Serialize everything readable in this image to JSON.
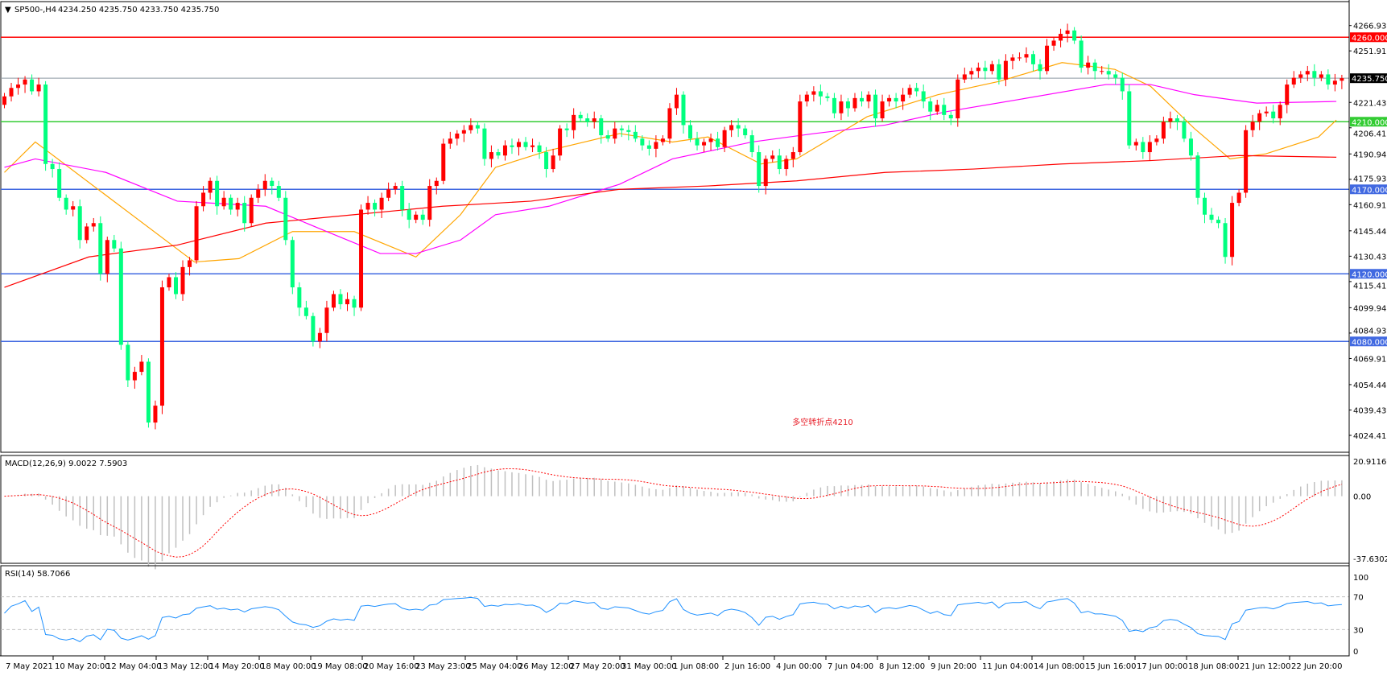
{
  "header": {
    "symbol": "SP500-,H4",
    "ohlc": "4234.250 4235.750 4233.750 4235.750"
  },
  "annotation": {
    "text": "多空转折点4210",
    "color": "#e8202a"
  },
  "colors": {
    "up": "#ff0000",
    "down": "#00ff7f",
    "ma_fast": "#ffa500",
    "ma_mid": "#ff00ff",
    "ma_slow": "#ff0000",
    "macd_hist": "#c0c0c0",
    "macd_signal": "#ff0000",
    "rsi": "#1e90ff"
  },
  "chart_data": {
    "type": "candlestick",
    "title": "SP500-,H4",
    "price_axis_ticks": [
      "4266.930",
      "4251.915",
      "4221.430",
      "4206.415",
      "4190.945",
      "4175.930",
      "4160.915",
      "4145.445",
      "4130.430",
      "4115.415",
      "4099.945",
      "4084.930",
      "4069.915",
      "4054.445",
      "4039.430",
      "4024.415"
    ],
    "ylim": [
      4024.415,
      4266.93
    ],
    "current_price": {
      "value": 4235.75,
      "label": "4235.750"
    },
    "levels": [
      {
        "value": 4260,
        "label": "4260.000",
        "color": "#ff0000"
      },
      {
        "value": 4210,
        "label": "4210.000",
        "color": "#33cc33"
      },
      {
        "value": 4170,
        "label": "4170.000",
        "color": "#4169e1"
      },
      {
        "value": 4120,
        "label": "4120.000",
        "color": "#4169e1"
      },
      {
        "value": 4080,
        "label": "4080.000",
        "color": "#4169e1"
      }
    ],
    "first_open": 4220,
    "closes": [
      4225,
      4230,
      4232,
      4235,
      4228,
      4232,
      4185,
      4182,
      4165,
      4158,
      4160,
      4140,
      4148,
      4150,
      4120,
      4140,
      4135,
      4078,
      4057,
      4062,
      4068,
      4032,
      4042,
      4112,
      4118,
      4108,
      4124,
      4128,
      4160,
      4168,
      4175,
      4160,
      4165,
      4158,
      4162,
      4150,
      4165,
      4170,
      4175,
      4172,
      4165,
      4140,
      4112,
      4100,
      4095,
      4080,
      4085,
      4100,
      4108,
      4102,
      4105,
      4100,
      4158,
      4162,
      4158,
      4165,
      4170,
      4172,
      4158,
      4152,
      4155,
      4152,
      4172,
      4175,
      4197,
      4200,
      4203,
      4205,
      4208,
      4206,
      4188,
      4192,
      4190,
      4196,
      4195,
      4198,
      4195,
      4196,
      4192,
      4182,
      4190,
      4206,
      4205,
      4214,
      4212,
      4210,
      4212,
      4202,
      4200,
      4206,
      4205,
      4204,
      4200,
      4196,
      4194,
      4198,
      4200,
      4218,
      4226,
      4208,
      4200,
      4196,
      4198,
      4200,
      4195,
      4205,
      4208,
      4206,
      4202,
      4192,
      4172,
      4188,
      4190,
      4182,
      4188,
      4192,
      4222,
      4226,
      4228,
      4225,
      4224,
      4215,
      4222,
      4218,
      4224,
      4222,
      4226,
      4212,
      4222,
      4224,
      4222,
      4226,
      4230,
      4228,
      4222,
      4216,
      4220,
      4214,
      4212,
      4235,
      4238,
      4240,
      4242,
      4240,
      4244,
      4235,
      4246,
      4248,
      4248,
      4250,
      4244,
      4240,
      4255,
      4258,
      4262,
      4264,
      4258,
      4242,
      4245,
      4240,
      4240,
      4238,
      4236,
      4228,
      4196,
      4198,
      4192,
      4198,
      4200,
      4210,
      4212,
      4210,
      4200,
      4190,
      4165,
      4155,
      4152,
      4150,
      4130,
      4162,
      4168,
      4205,
      4210,
      4215,
      4216,
      4212,
      4220,
      4232,
      4236,
      4238,
      4240,
      4236,
      4238,
      4232,
      4234.25,
      4235.75
    ],
    "moving_averages": [
      {
        "color": "#ffa500",
        "points": [
          [
            0,
            4180
          ],
          [
            4.5,
            4198
          ],
          [
            27.7,
            4127
          ],
          [
            34.2,
            4129
          ],
          [
            42,
            4145
          ],
          [
            51,
            4145
          ],
          [
            60,
            4130
          ],
          [
            66.5,
            4155
          ],
          [
            71.6,
            4183
          ],
          [
            79.4,
            4193
          ],
          [
            89.7,
            4203
          ],
          [
            97.4,
            4198
          ],
          [
            102.6,
            4201
          ],
          [
            110.3,
            4185
          ],
          [
            115.5,
            4188
          ],
          [
            125.8,
            4213
          ],
          [
            136.1,
            4226
          ],
          [
            145.2,
            4234
          ],
          [
            154.2,
            4245
          ],
          [
            161.9,
            4241
          ],
          [
            167.1,
            4231
          ],
          [
            173.5,
            4206
          ],
          [
            178.7,
            4188
          ],
          [
            183.9,
            4191
          ],
          [
            191.6,
            4201
          ],
          [
            194.2,
            4211
          ]
        ]
      },
      {
        "color": "#ff00ff",
        "points": [
          [
            0,
            4183
          ],
          [
            4.5,
            4188
          ],
          [
            14.8,
            4180
          ],
          [
            25.2,
            4163
          ],
          [
            38.1,
            4160
          ],
          [
            45.8,
            4147
          ],
          [
            54.8,
            4132
          ],
          [
            60,
            4132
          ],
          [
            66.5,
            4140
          ],
          [
            71.6,
            4155
          ],
          [
            79.4,
            4160
          ],
          [
            89.7,
            4173
          ],
          [
            97.4,
            4188
          ],
          [
            109,
            4198
          ],
          [
            118.1,
            4203
          ],
          [
            128.4,
            4208
          ],
          [
            137.4,
            4216
          ],
          [
            147.7,
            4223
          ],
          [
            160.6,
            4232
          ],
          [
            167.1,
            4232
          ],
          [
            173.5,
            4226
          ],
          [
            182.6,
            4221
          ],
          [
            194.2,
            4222
          ]
        ]
      },
      {
        "color": "#ff0000",
        "points": [
          [
            0,
            4112
          ],
          [
            12.3,
            4130
          ],
          [
            25.2,
            4137
          ],
          [
            38.1,
            4150
          ],
          [
            51,
            4155
          ],
          [
            63.9,
            4160
          ],
          [
            76.8,
            4163
          ],
          [
            89.7,
            4170
          ],
          [
            102.6,
            4172
          ],
          [
            115.5,
            4175
          ],
          [
            128.4,
            4180
          ],
          [
            141.3,
            4182
          ],
          [
            154.2,
            4185
          ],
          [
            167.1,
            4187
          ],
          [
            180,
            4190
          ],
          [
            194.2,
            4189
          ]
        ]
      }
    ],
    "x_tick_labels": [
      "7 May 2021",
      "10 May 20:00",
      "12 May 04:00",
      "13 May 12:00",
      "14 May 20:00",
      "18 May 00:00",
      "19 May 08:00",
      "20 May 16:00",
      "23 May 23:00",
      "25 May 04:00",
      "26 May 12:00",
      "27 May 20:00",
      "31 May 00:00",
      "1 Jun 08:00",
      "2 Jun 16:00",
      "4 Jun 00:00",
      "7 Jun 04:00",
      "8 Jun 12:00",
      "9 Jun 20:00",
      "11 Jun 04:00",
      "14 Jun 08:00",
      "15 Jun 16:00",
      "17 Jun 00:00",
      "18 Jun 08:00",
      "21 Jun 12:00",
      "22 Jun 20:00"
    ],
    "macd": {
      "label": "MACD(12,26,9) 9.0022 7.5903",
      "ylim": [
        -37.6302,
        20.9116
      ],
      "ticks": [
        "20.9116",
        "0.00",
        "-37.6302"
      ]
    },
    "rsi": {
      "label": "RSI(14) 58.7066",
      "ylim": [
        0,
        100
      ],
      "levels": [
        70,
        30
      ],
      "ticks": [
        "100",
        "70",
        "30",
        "0"
      ]
    }
  }
}
